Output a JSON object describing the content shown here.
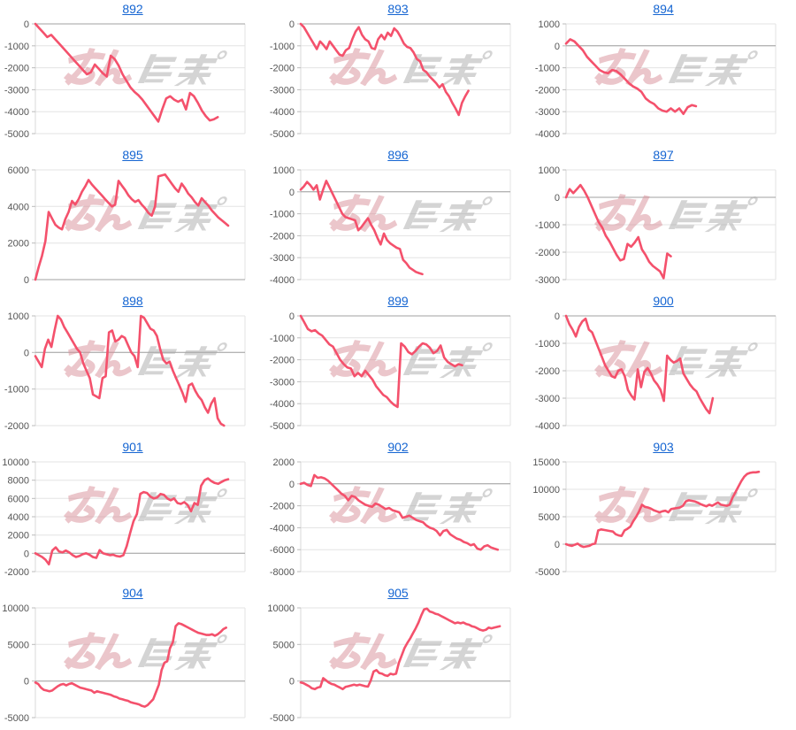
{
  "page": {
    "background": "#ffffff"
  },
  "style": {
    "link_color": "#1565d2",
    "line_color": "#f4516c",
    "grid_color": "#e3e3e3",
    "zero_line_color": "#a0a0a0",
    "axis_color": "#d9d9d9",
    "tick_color": "#bbbbbb",
    "tick_text_color": "#555555",
    "watermark_pink": "#d98f98",
    "watermark_gray": "#ababab"
  },
  "watermark": {
    "name": "minrepo-watermark",
    "text": "みんレポ"
  },
  "chart_data": [
    {
      "type": "line",
      "title": "892",
      "ylim": [
        -5000,
        0
      ],
      "yticks": [
        0,
        -1000,
        -2000,
        -3000,
        -4000,
        -5000
      ],
      "span": 0.87,
      "values": [
        0,
        -200,
        -400,
        -600,
        -500,
        -700,
        -900,
        -1100,
        -1300,
        -1500,
        -1700,
        -1900,
        -2100,
        -2300,
        -2200,
        -1850,
        -2050,
        -2250,
        -2400,
        -1450,
        -1600,
        -1900,
        -2300,
        -2600,
        -2900,
        -3100,
        -3250,
        -3450,
        -3700,
        -3950,
        -4200,
        -4450,
        -3900,
        -3400,
        -3300,
        -3450,
        -3550,
        -3450,
        -3900,
        -3150,
        -3300,
        -3600,
        -3950,
        -4200,
        -4400,
        -4350,
        -4250
      ]
    },
    {
      "type": "line",
      "title": "893",
      "ylim": [
        -5000,
        0
      ],
      "yticks": [
        0,
        -1000,
        -2000,
        -3000,
        -4000,
        -5000
      ],
      "span": 0.8,
      "values": [
        0,
        -150,
        -400,
        -650,
        -900,
        -1150,
        -800,
        -950,
        -1150,
        -800,
        -1000,
        -1200,
        -1400,
        -1450,
        -1200,
        -1100,
        -700,
        -350,
        -150,
        -500,
        -700,
        -800,
        -1100,
        -1150,
        -700,
        -500,
        -700,
        -400,
        -550,
        -200,
        -350,
        -600,
        -900,
        -1050,
        -1100,
        -1300,
        -1600,
        -1700,
        -2100,
        -2200,
        -2400,
        -2550,
        -2700,
        -2900,
        -2750,
        -3100,
        -3300,
        -3600,
        -3850,
        -4150,
        -3600,
        -3300,
        -3050
      ]
    },
    {
      "type": "line",
      "title": "894",
      "ylim": [
        -4000,
        1000
      ],
      "yticks": [
        1000,
        0,
        -1000,
        -2000,
        -3000,
        -4000
      ],
      "span": 0.62,
      "values": [
        100,
        300,
        200,
        0,
        -200,
        -500,
        -700,
        -900,
        -1100,
        -1200,
        -1250,
        -1100,
        -1150,
        -1300,
        -1500,
        -1700,
        -1850,
        -1950,
        -2100,
        -2400,
        -2550,
        -2650,
        -2850,
        -2950,
        -3000,
        -2850,
        -3000,
        -2850,
        -3100,
        -2800,
        -2700,
        -2750
      ]
    },
    {
      "type": "line",
      "title": "895",
      "ylim": [
        0,
        6000
      ],
      "yticks": [
        6000,
        4000,
        2000,
        0
      ],
      "span": 0.92,
      "values": [
        0,
        700,
        1300,
        2100,
        3700,
        3350,
        3000,
        2850,
        2750,
        3300,
        3700,
        4300,
        4100,
        4400,
        4800,
        5100,
        5450,
        5200,
        5000,
        4800,
        4600,
        4400,
        4200,
        4000,
        4100,
        5400,
        5150,
        4900,
        4600,
        4400,
        4250,
        4350,
        4100,
        3900,
        3650,
        3500,
        4000,
        5650,
        5700,
        5750,
        5500,
        5250,
        5000,
        4800,
        5250,
        5000,
        4700,
        4500,
        4250,
        4050,
        4450,
        4250,
        4050,
        3800,
        3600,
        3400,
        3250,
        3100,
        2950
      ]
    },
    {
      "type": "line",
      "title": "896",
      "ylim": [
        -4000,
        1000
      ],
      "yticks": [
        1000,
        0,
        -1000,
        -2000,
        -3000,
        -4000
      ],
      "span": 0.58,
      "values": [
        100,
        250,
        450,
        300,
        100,
        300,
        -350,
        100,
        500,
        200,
        -100,
        -400,
        -700,
        -1000,
        -1150,
        -1200,
        -1250,
        -1300,
        -1750,
        -1600,
        -1400,
        -1200,
        -1500,
        -1750,
        -2100,
        -2400,
        -1900,
        -2200,
        -2350,
        -2450,
        -2550,
        -2600,
        -3100,
        -3250,
        -3450,
        -3550,
        -3650,
        -3700,
        -3750
      ]
    },
    {
      "type": "line",
      "title": "897",
      "ylim": [
        -3000,
        1000
      ],
      "yticks": [
        1000,
        0,
        -1000,
        -2000,
        -3000
      ],
      "span": 0.5,
      "values": [
        0,
        300,
        150,
        300,
        450,
        250,
        0,
        -300,
        -600,
        -900,
        -1100,
        -1400,
        -1600,
        -1850,
        -2100,
        -2300,
        -2250,
        -1700,
        -1800,
        -1650,
        -1450,
        -1900,
        -2100,
        -2350,
        -2500,
        -2600,
        -2700,
        -2950,
        -2050,
        -2150
      ]
    },
    {
      "type": "line",
      "title": "898",
      "ylim": [
        -2000,
        1000
      ],
      "yticks": [
        1000,
        0,
        -1000,
        -2000
      ],
      "span": 0.9,
      "values": [
        -100,
        -250,
        -400,
        100,
        350,
        150,
        600,
        1000,
        900,
        700,
        550,
        400,
        250,
        100,
        0,
        -300,
        -500,
        -700,
        -1150,
        -1200,
        -1250,
        -700,
        -650,
        550,
        600,
        300,
        350,
        450,
        400,
        200,
        0,
        -100,
        -400,
        1000,
        950,
        800,
        650,
        600,
        450,
        100,
        -200,
        -300,
        -250,
        -500,
        -700,
        -900,
        -1100,
        -1350,
        -900,
        -850,
        -1050,
        -1200,
        -1300,
        -1500,
        -1650,
        -1400,
        -1250,
        -1800,
        -1950,
        -2000
      ]
    },
    {
      "type": "line",
      "title": "899",
      "ylim": [
        -5000,
        0
      ],
      "yticks": [
        0,
        -1000,
        -2000,
        -3000,
        -4000,
        -5000
      ],
      "span": 0.77,
      "values": [
        0,
        -300,
        -600,
        -700,
        -650,
        -800,
        -900,
        -1100,
        -1300,
        -1400,
        -1700,
        -2000,
        -2200,
        -2350,
        -2400,
        -2750,
        -2600,
        -2750,
        -2500,
        -2700,
        -2900,
        -3200,
        -3400,
        -3600,
        -3700,
        -3900,
        -4050,
        -4150,
        -1250,
        -1400,
        -1650,
        -1750,
        -1600,
        -1400,
        -1250,
        -1300,
        -1450,
        -1700,
        -1600,
        -1350,
        -1900,
        -2100,
        -2200,
        -2300,
        -2200,
        -2250
      ]
    },
    {
      "type": "line",
      "title": "900",
      "ylim": [
        -4000,
        0
      ],
      "yticks": [
        0,
        -1000,
        -2000,
        -3000,
        -4000
      ],
      "span": 0.7,
      "values": [
        0,
        -300,
        -500,
        -750,
        -400,
        -200,
        -100,
        -500,
        -600,
        -900,
        -1200,
        -1500,
        -1800,
        -2000,
        -2200,
        -2250,
        -2000,
        -1950,
        -2200,
        -2700,
        -2900,
        -3050,
        -1950,
        -2600,
        -2050,
        -1900,
        -2100,
        -2350,
        -2500,
        -2700,
        -3100,
        -1450,
        -1600,
        -1700,
        -1650,
        -1550,
        -2100,
        -2300,
        -2500,
        -2650,
        -2750,
        -3000,
        -3200,
        -3400,
        -3550,
        -3000
      ]
    },
    {
      "type": "line",
      "title": "901",
      "ylim": [
        -2000,
        10000
      ],
      "yticks": [
        10000,
        8000,
        6000,
        4000,
        2000,
        0,
        -2000
      ],
      "span": 0.92,
      "values": [
        0,
        -200,
        -400,
        -700,
        -1200,
        300,
        650,
        200,
        100,
        300,
        100,
        -200,
        -400,
        -300,
        -100,
        0,
        -150,
        -400,
        -500,
        350,
        0,
        -100,
        -200,
        -150,
        -300,
        -350,
        -200,
        800,
        2200,
        3500,
        4300,
        6500,
        6700,
        6600,
        6200,
        6000,
        6100,
        6500,
        6400,
        6000,
        5800,
        6000,
        5500,
        5400,
        5600,
        5300,
        4600,
        5500,
        5300,
        7400,
        8000,
        8200,
        7900,
        7700,
        7600,
        7800,
        8000,
        8100
      ]
    },
    {
      "type": "line",
      "title": "902",
      "ylim": [
        -8000,
        2000
      ],
      "yticks": [
        2000,
        0,
        -2000,
        -4000,
        -6000,
        -8000
      ],
      "span": 0.94,
      "values": [
        0,
        100,
        -100,
        -200,
        800,
        550,
        600,
        500,
        300,
        0,
        -300,
        -600,
        -900,
        -1100,
        -1500,
        -1100,
        -1200,
        -1500,
        -1700,
        -1900,
        -2000,
        -2100,
        -1800,
        -1900,
        -2100,
        -2300,
        -2200,
        -2400,
        -2500,
        -2600,
        -3100,
        -3000,
        -2900,
        -3100,
        -3300,
        -3400,
        -3500,
        -3800,
        -4000,
        -4100,
        -4300,
        -4700,
        -4300,
        -4200,
        -4600,
        -4800,
        -5000,
        -5100,
        -5300,
        -5400,
        -5600,
        -5500,
        -5900,
        -6000,
        -5700,
        -5600,
        -5800,
        -5900,
        -6000
      ]
    },
    {
      "type": "line",
      "title": "903",
      "ylim": [
        -5000,
        15000
      ],
      "yticks": [
        15000,
        10000,
        5000,
        0,
        -5000
      ],
      "span": 0.92,
      "values": [
        0,
        -200,
        -300,
        -100,
        100,
        -300,
        -500,
        -400,
        -300,
        0,
        100,
        2500,
        2700,
        2600,
        2500,
        2400,
        2300,
        1800,
        1600,
        1500,
        2500,
        2800,
        3200,
        4200,
        5000,
        6000,
        7200,
        6800,
        6700,
        6500,
        6200,
        6000,
        5800,
        6000,
        6100,
        5800,
        6400,
        6500,
        6600,
        6700,
        7000,
        7800,
        8000,
        7900,
        7800,
        7600,
        7300,
        7100,
        6900,
        7200,
        7000,
        7300,
        7600,
        7200,
        7100,
        7000,
        7200,
        8500,
        9500,
        10500,
        11500,
        12300,
        12800,
        13000,
        13100,
        13100,
        13200
      ]
    },
    {
      "type": "line",
      "title": "904",
      "ylim": [
        -5000,
        10000
      ],
      "yticks": [
        10000,
        5000,
        0,
        -5000
      ],
      "span": 0.91,
      "values": [
        -200,
        -400,
        -900,
        -1200,
        -1300,
        -1400,
        -1300,
        -1000,
        -700,
        -500,
        -400,
        -600,
        -400,
        -300,
        -500,
        -700,
        -900,
        -1000,
        -1100,
        -1200,
        -1300,
        -1600,
        -1400,
        -1500,
        -1600,
        -1700,
        -1800,
        -1900,
        -2100,
        -2200,
        -2400,
        -2500,
        -2600,
        -2700,
        -2900,
        -3000,
        -3100,
        -3200,
        -3400,
        -3500,
        -3300,
        -2900,
        -2500,
        -1500,
        -500,
        1500,
        2500,
        2700,
        4500,
        5300,
        7500,
        7900,
        7800,
        7600,
        7400,
        7200,
        7000,
        6800,
        6600,
        6500,
        6400,
        6300,
        6300,
        6400,
        6200,
        6400,
        6700,
        7100,
        7300
      ]
    },
    {
      "type": "line",
      "title": "905",
      "ylim": [
        -5000,
        10000
      ],
      "yticks": [
        10000,
        5000,
        0,
        -5000
      ],
      "span": 0.95,
      "values": [
        -200,
        -300,
        -500,
        -700,
        -1000,
        -1100,
        -900,
        -800,
        400,
        100,
        -200,
        -400,
        -500,
        -700,
        -900,
        -1100,
        -800,
        -700,
        -600,
        -500,
        -600,
        -500,
        -600,
        -700,
        -750,
        100,
        1300,
        1500,
        1100,
        1000,
        800,
        700,
        1000,
        900,
        1000,
        2500,
        3500,
        4500,
        5200,
        5800,
        6500,
        7200,
        8000,
        9000,
        9800,
        9900,
        9500,
        9400,
        9200,
        9100,
        8900,
        8700,
        8500,
        8300,
        8100,
        7900,
        8000,
        7900,
        8000,
        7800,
        7700,
        7500,
        7400,
        7200,
        7000,
        6900,
        7000,
        7300,
        7200,
        7300,
        7400,
        7500
      ]
    }
  ]
}
